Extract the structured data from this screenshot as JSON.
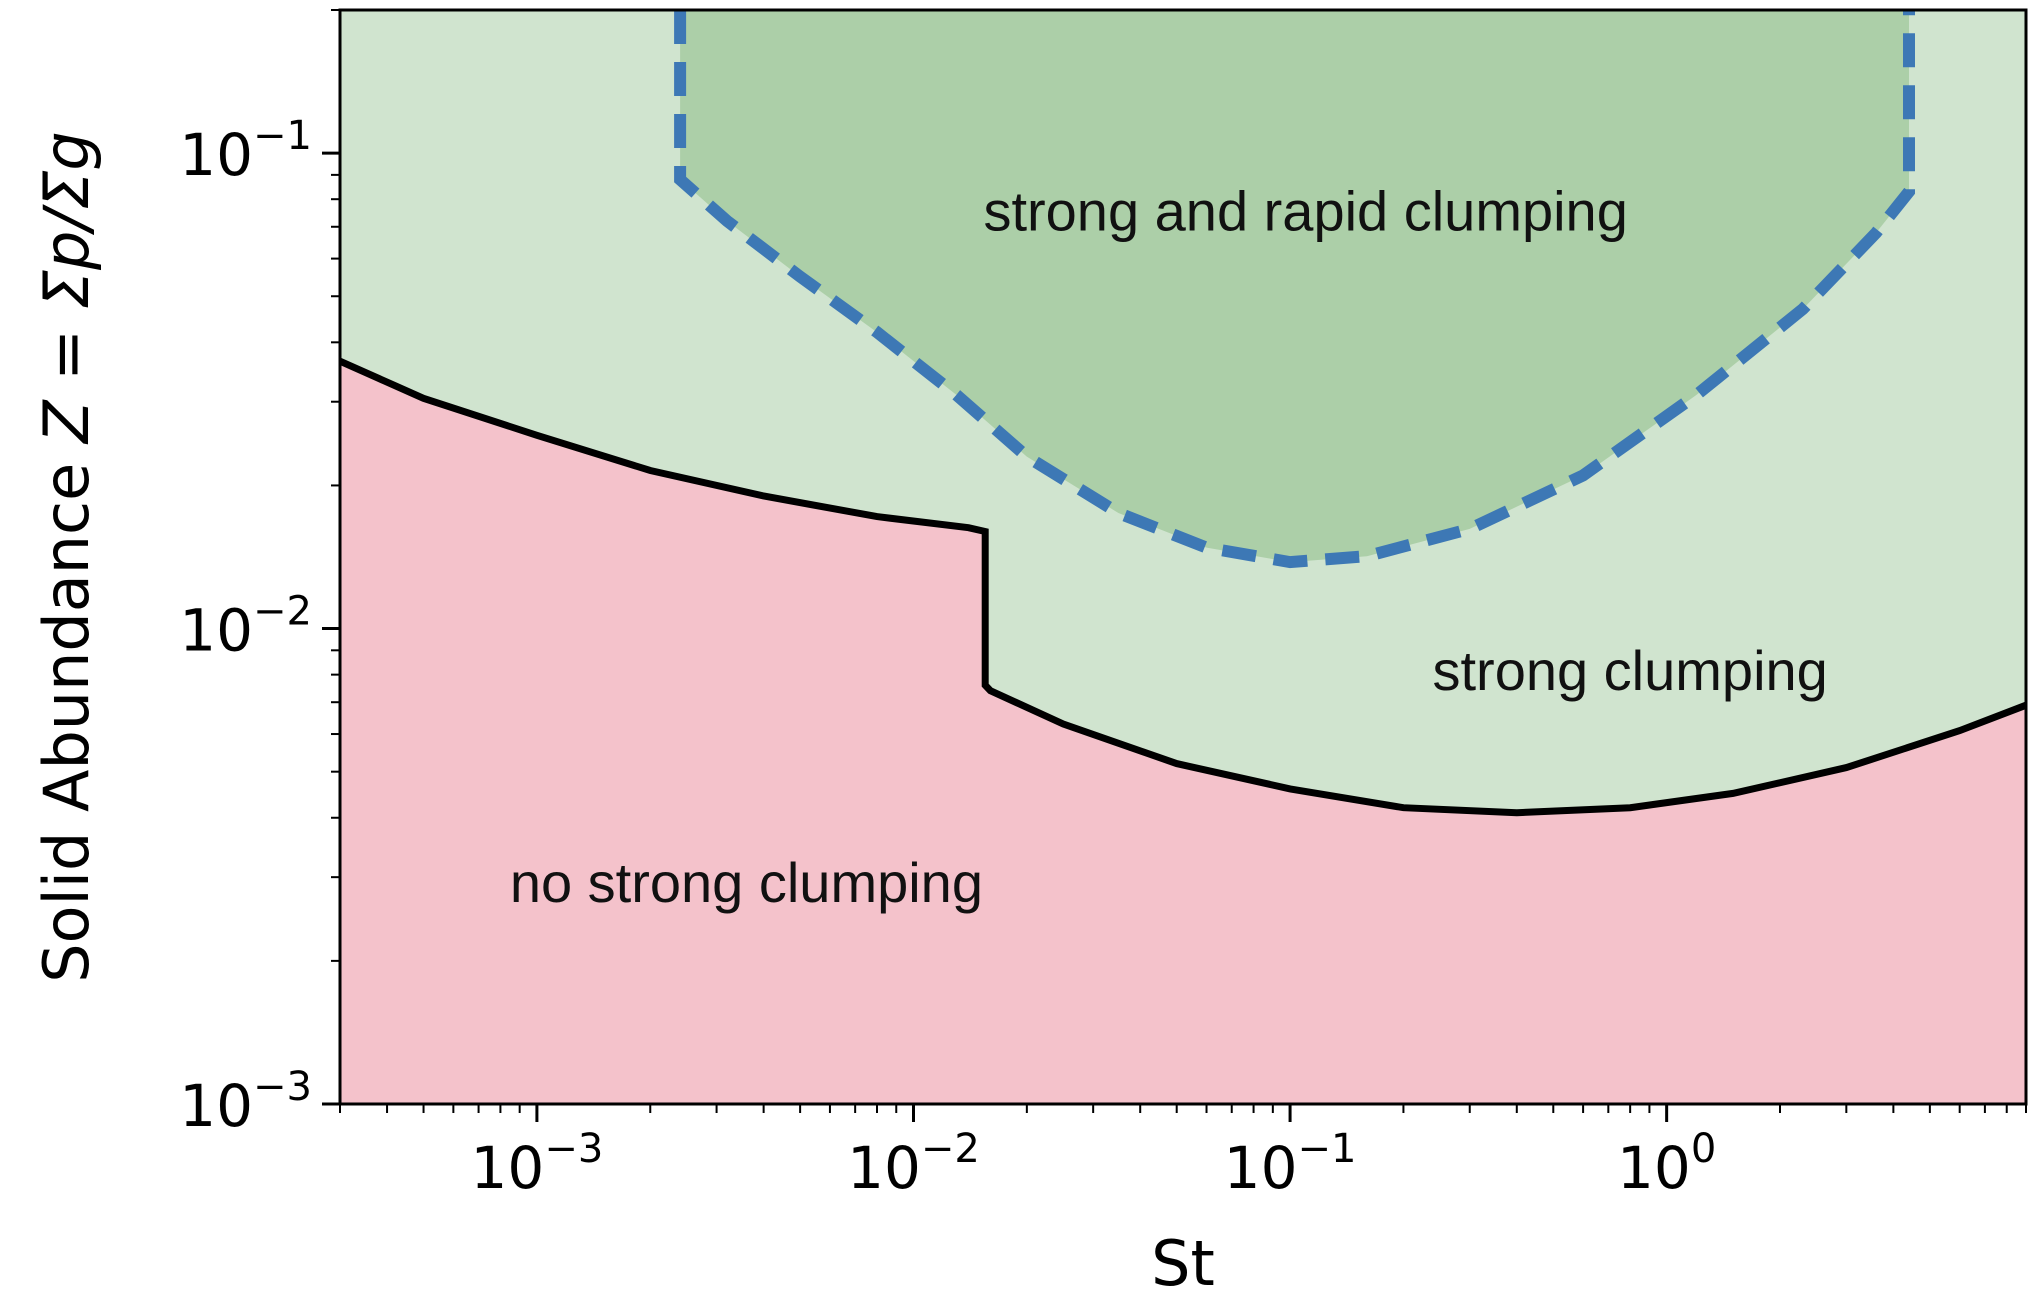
{
  "chart_data": {
    "type": "area",
    "xlabel": "St",
    "ylabel_prefix": "Solid Abundance ",
    "ylabel_math": "Z = Σp/Σg",
    "x_scale": "log",
    "y_scale": "log",
    "xlim": [
      0.0003,
      9
    ],
    "ylim": [
      0.001,
      0.2
    ],
    "x_ticks": [
      {
        "value": 0.001,
        "base": "10",
        "exp": "−3"
      },
      {
        "value": 0.01,
        "base": "10",
        "exp": "−2"
      },
      {
        "value": 0.1,
        "base": "10",
        "exp": "−1"
      },
      {
        "value": 1,
        "base": "10",
        "exp": "0"
      }
    ],
    "y_ticks": [
      {
        "value": 0.001,
        "base": "10",
        "exp": "−3"
      },
      {
        "value": 0.01,
        "base": "10",
        "exp": "−2"
      },
      {
        "value": 0.1,
        "base": "10",
        "exp": "−1"
      }
    ],
    "colors": {
      "no_clumping_fill": "#f4c2cb",
      "strong_clumping_fill": "#d0e4cf",
      "rapid_clumping_fill": "#accfa8",
      "boundary_line": "#000000",
      "rapid_boundary_line": "#3d78b5"
    },
    "series": [
      {
        "role": "strong-clumping-boundary",
        "style": "solid",
        "x": [
          0.0003,
          0.0005,
          0.001,
          0.002,
          0.004,
          0.008,
          0.014,
          0.0155,
          0.0155,
          0.016,
          0.025,
          0.05,
          0.1,
          0.2,
          0.4,
          0.8,
          1.5,
          3,
          6,
          9
        ],
        "y": [
          0.0365,
          0.0305,
          0.0255,
          0.0215,
          0.019,
          0.0172,
          0.0163,
          0.016,
          0.0076,
          0.0074,
          0.0063,
          0.0052,
          0.0046,
          0.0042,
          0.0041,
          0.0042,
          0.0045,
          0.0051,
          0.0061,
          0.0069
        ]
      },
      {
        "role": "rapid-clumping-boundary",
        "style": "dashed",
        "x": [
          0.0024,
          0.0024,
          0.0032,
          0.005,
          0.008,
          0.013,
          0.02,
          0.035,
          0.06,
          0.1,
          0.16,
          0.3,
          0.6,
          1.2,
          2.3,
          3.6,
          4.4,
          4.4
        ],
        "y": [
          0.2,
          0.088,
          0.072,
          0.055,
          0.042,
          0.031,
          0.023,
          0.0175,
          0.0148,
          0.0138,
          0.0142,
          0.0162,
          0.021,
          0.031,
          0.047,
          0.068,
          0.083,
          0.2
        ]
      }
    ],
    "annotations": [
      {
        "text": "strong and rapid clumping",
        "x": 0.11,
        "y": 0.075
      },
      {
        "text": "strong clumping",
        "x": 0.8,
        "y": 0.0081
      },
      {
        "text": "no strong clumping",
        "x": 0.0036,
        "y": 0.0029
      }
    ]
  }
}
